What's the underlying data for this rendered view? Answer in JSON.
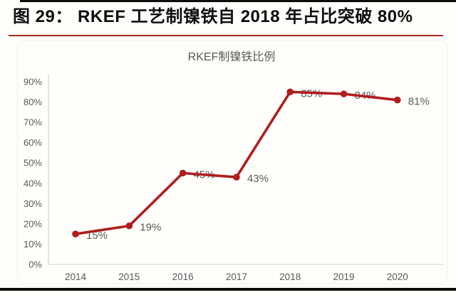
{
  "header": {
    "title": "图 29： RKEF 工艺制镍铁自 2018 年占比突破 80%"
  },
  "chart_data": {
    "type": "line",
    "title": "RKEF制镍铁比例",
    "categories": [
      "2014",
      "2015",
      "2016",
      "2017",
      "2018",
      "2019",
      "2020"
    ],
    "values": [
      15,
      19,
      45,
      43,
      85,
      84,
      81
    ],
    "data_labels": [
      "15%",
      "19%",
      "45%",
      "43%",
      "85%",
      "84%",
      "81%"
    ],
    "y_ticks": [
      "0%",
      "10%",
      "20%",
      "30%",
      "40%",
      "50%",
      "60%",
      "70%",
      "80%",
      "90%"
    ],
    "y_tick_values": [
      0,
      10,
      20,
      30,
      40,
      50,
      60,
      70,
      80,
      90
    ],
    "ylim": [
      0,
      90
    ],
    "grid": false,
    "legend": "none",
    "colors": {
      "series": "#b01d1d",
      "labels": "#595959",
      "axis": "#d9d9d9",
      "title": "#595959"
    }
  },
  "rules": {
    "caption_rule_color": "#a8271a",
    "page_rule_color": "#0c0c0c"
  }
}
